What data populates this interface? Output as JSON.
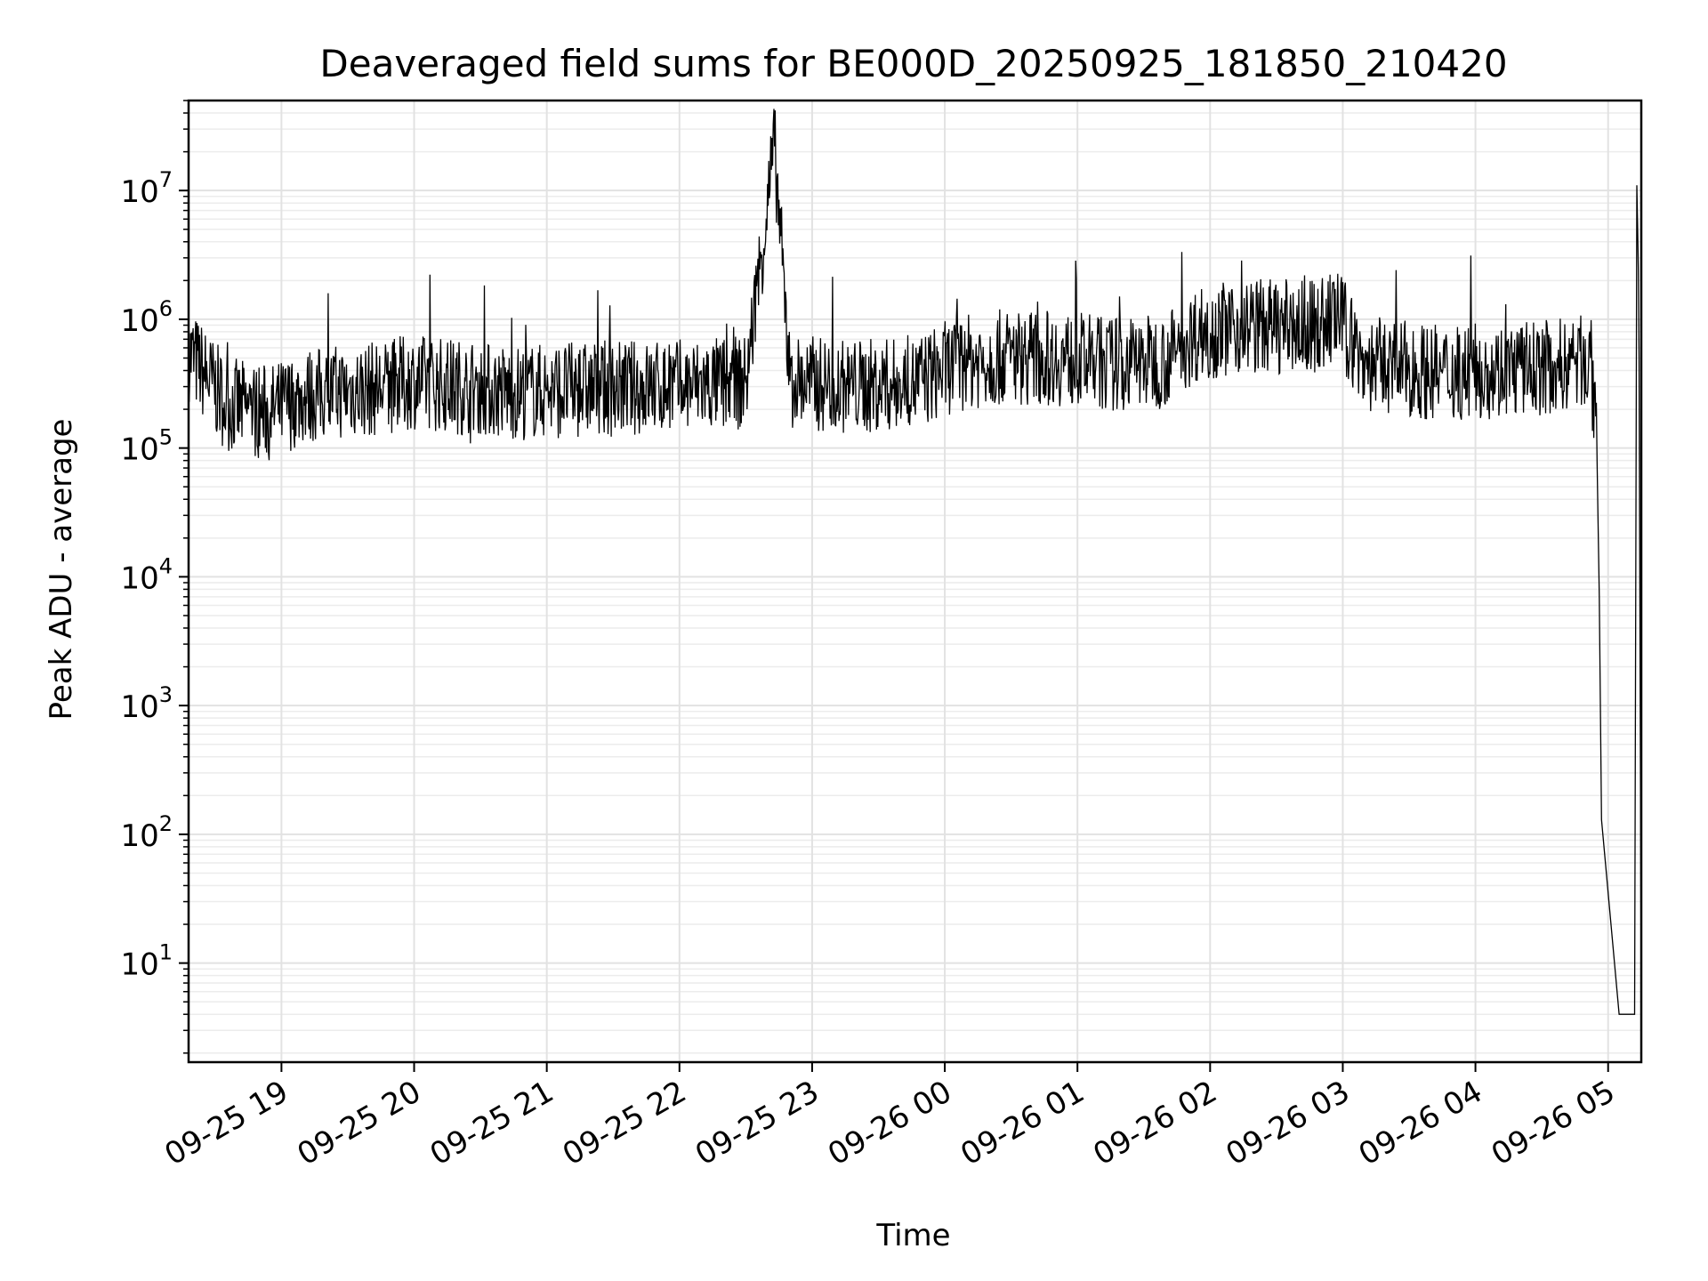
{
  "chart_data": {
    "type": "line",
    "title": "Deaveraged field sums for BE000D_20250925_181850_210420",
    "xlabel": "Time",
    "ylabel": "Peak ADU - average",
    "yscale": "log",
    "ylim": [
      1.7,
      50000000
    ],
    "xlim": [
      "2025-09-25 18:18",
      "2025-09-26 05:15"
    ],
    "grid": "on (major and minor)",
    "legend": "none",
    "x_ticks": [
      "09-25 19",
      "09-25 20",
      "09-25 21",
      "09-25 22",
      "09-25 23",
      "09-26 00",
      "09-26 01",
      "09-26 02",
      "09-26 03",
      "09-26 04",
      "09-26 05"
    ],
    "x_tick_times": [
      "2025-09-25 19:00",
      "2025-09-25 20:00",
      "2025-09-25 21:00",
      "2025-09-25 22:00",
      "2025-09-25 23:00",
      "2025-09-26 00:00",
      "2025-09-26 01:00",
      "2025-09-26 02:00",
      "2025-09-26 03:00",
      "2025-09-26 04:00",
      "2025-09-26 05:00"
    ],
    "y_ticks": [
      {
        "base": "10",
        "exp": "1",
        "value": 10
      },
      {
        "base": "10",
        "exp": "2",
        "value": 100
      },
      {
        "base": "10",
        "exp": "3",
        "value": 1000
      },
      {
        "base": "10",
        "exp": "4",
        "value": 10000
      },
      {
        "base": "10",
        "exp": "5",
        "value": 100000
      },
      {
        "base": "10",
        "exp": "6",
        "value": 1000000
      },
      {
        "base": "10",
        "exp": "7",
        "value": 10000000
      }
    ],
    "series": [
      {
        "color": "#000000",
        "x": [
          "2025-09-25 18:18",
          "2025-09-25 18:25",
          "2025-09-25 18:35",
          "2025-09-25 18:45",
          "2025-09-25 18:55",
          "2025-09-25 19:10",
          "2025-09-25 19:30",
          "2025-09-25 19:45",
          "2025-09-25 20:00",
          "2025-09-25 20:20",
          "2025-09-25 20:45",
          "2025-09-25 21:00",
          "2025-09-25 21:30",
          "2025-09-25 22:00",
          "2025-09-25 22:30",
          "2025-09-25 22:43",
          "2025-09-25 22:50",
          "2025-09-25 23:15",
          "2025-09-25 23:45",
          "2025-09-26 00:05",
          "2025-09-26 00:30",
          "2025-09-26 00:50",
          "2025-09-26 01:15",
          "2025-09-26 01:40",
          "2025-09-26 01:55",
          "2025-09-26 02:20",
          "2025-09-26 02:45",
          "2025-09-26 02:58",
          "2025-09-26 03:10",
          "2025-09-26 03:25",
          "2025-09-26 03:45",
          "2025-09-26 04:10",
          "2025-09-26 04:30",
          "2025-09-26 04:45",
          "2025-09-26 04:52",
          "2025-09-26 04:55",
          "2025-09-26 04:56",
          "2025-09-26 04:57",
          "2025-09-26 05:05",
          "2025-09-26 05:12",
          "2025-09-26 05:13",
          "2025-09-26 05:14",
          "2025-09-26 05:15"
        ],
        "y": [
          550000,
          380000,
          220000,
          200000,
          190000,
          250000,
          280000,
          290000,
          330000,
          300000,
          270000,
          280000,
          290000,
          300000,
          320000,
          22000000,
          330000,
          300000,
          310000,
          450000,
          520000,
          500000,
          450000,
          480000,
          800000,
          900000,
          850000,
          1050000,
          450000,
          420000,
          380000,
          400000,
          420000,
          450000,
          500000,
          80000,
          7000,
          130,
          4,
          4,
          11000000,
          500000,
          4
        ]
      }
    ]
  }
}
